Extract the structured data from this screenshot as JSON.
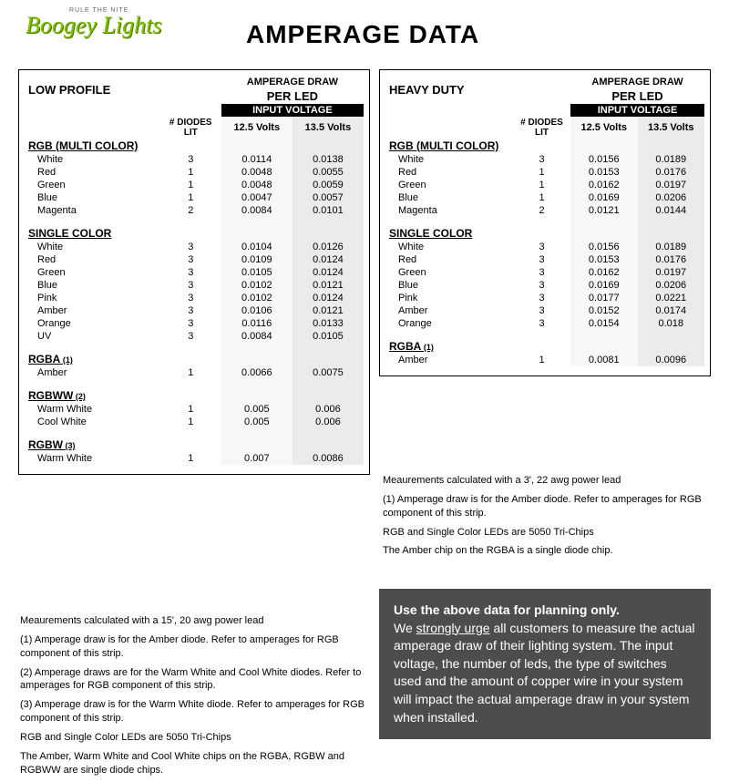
{
  "logo": {
    "tagline": "RULE THE NITE",
    "brand": "Boogey Lights"
  },
  "title": "AMPERAGE DATA",
  "colors": {
    "voltage_bar_bg": "#000000",
    "voltage_bar_text": "#ffffff",
    "col_light_bg": "#f7f7f7",
    "col_dark_bg": "#ebebeb",
    "warn_bg": "#4d4d4d",
    "warn_text": "#ffffff",
    "logo_green": "#7fbf00"
  },
  "headers": {
    "amp_draw": "AMPERAGE DRAW",
    "per_led": "PER LED",
    "input_voltage": "INPUT VOLTAGE",
    "diodes_lit_1": "# DIODES",
    "diodes_lit_2": "LIT",
    "v125": "12.5 Volts",
    "v135": "13.5 Volts"
  },
  "left": {
    "title": "LOW PROFILE",
    "sections": [
      {
        "heading": "RGB (MULTI COLOR)",
        "rows": [
          [
            "White",
            "3",
            "0.0114",
            "0.0138"
          ],
          [
            "Red",
            "1",
            "0.0048",
            "0.0055"
          ],
          [
            "Green",
            "1",
            "0.0048",
            "0.0059"
          ],
          [
            "Blue",
            "1",
            "0.0047",
            "0.0057"
          ],
          [
            "Magenta",
            "2",
            "0.0084",
            "0.0101"
          ]
        ]
      },
      {
        "heading": "SINGLE COLOR",
        "rows": [
          [
            "White",
            "3",
            "0.0104",
            "0.0126"
          ],
          [
            "Red",
            "3",
            "0.0109",
            "0.0124"
          ],
          [
            "Green",
            "3",
            "0.0105",
            "0.0124"
          ],
          [
            "Blue",
            "3",
            "0.0102",
            "0.0121"
          ],
          [
            "Pink",
            "3",
            "0.0102",
            "0.0124"
          ],
          [
            "Amber",
            "3",
            "0.0106",
            "0.0121"
          ],
          [
            "Orange",
            "3",
            "0.0116",
            "0.0133"
          ],
          [
            "UV",
            "3",
            "0.0084",
            "0.0105"
          ]
        ]
      },
      {
        "heading": "RGBA",
        "note": "(1)",
        "rows": [
          [
            "Amber",
            "1",
            "0.0066",
            "0.0075"
          ]
        ]
      },
      {
        "heading": "RGBWW",
        "note": "(2)",
        "rows": [
          [
            "Warm White",
            "1",
            "0.005",
            "0.006"
          ],
          [
            "Cool White",
            "1",
            "0.005",
            "0.006"
          ]
        ]
      },
      {
        "heading": "RGBW",
        "note": "(3)",
        "rows": [
          [
            "Warm White",
            "1",
            "0.007",
            "0.0086"
          ]
        ]
      }
    ]
  },
  "right": {
    "title": "HEAVY DUTY",
    "sections": [
      {
        "heading": "RGB (MULTI COLOR)",
        "rows": [
          [
            "White",
            "3",
            "0.0156",
            "0.0189"
          ],
          [
            "Red",
            "1",
            "0.0153",
            "0.0176"
          ],
          [
            "Green",
            "1",
            "0.0162",
            "0.0197"
          ],
          [
            "Blue",
            "1",
            "0.0169",
            "0.0206"
          ],
          [
            "Magenta",
            "2",
            "0.0121",
            "0.0144"
          ]
        ]
      },
      {
        "heading": "SINGLE COLOR",
        "rows": [
          [
            "White",
            "3",
            "0.0156",
            "0.0189"
          ],
          [
            "Red",
            "3",
            "0.0153",
            "0.0176"
          ],
          [
            "Green",
            "3",
            "0.0162",
            "0.0197"
          ],
          [
            "Blue",
            "3",
            "0.0169",
            "0.0206"
          ],
          [
            "Pink",
            "3",
            "0.0177",
            "0.0221"
          ],
          [
            "Amber",
            "3",
            "0.0152",
            "0.0174"
          ],
          [
            "Orange",
            "3",
            "0.0154",
            "0.018"
          ]
        ]
      },
      {
        "heading": "RGBA",
        "note": "(1)",
        "rows": [
          [
            "Amber",
            "1",
            "0.0081",
            "0.0096"
          ]
        ]
      }
    ]
  },
  "footnotes_left": [
    "Meaurements calculated with a 15', 20 awg power lead",
    "(1) Amperage draw is for the Amber diode.  Refer to amperages for RGB component of this strip.",
    "(2) Amperage draws are for the Warm White and Cool White diodes.  Refer to amperages for RGB component of this strip.",
    "(3) Amperage draw is for the Warm White diode.  Refer to amperages for RGB component of this strip.",
    "RGB and Single Color LEDs are 5050 Tri-Chips",
    "The Amber, Warm White and Cool White chips on the RGBA, RGBW and RGBWW are single diode chips."
  ],
  "footnotes_right": [
    "Meaurements calculated with a 3', 22 awg power lead",
    "(1) Amperage draw is for the Amber diode.  Refer to amperages for RGB component of this strip.",
    "RGB and Single Color LEDs are 5050 Tri-Chips",
    "The Amber chip on the RGBA is a single diode chip."
  ],
  "warning": {
    "bold_line": "Use the above data for planning only.",
    "pre": "We ",
    "ul": "strongly urge",
    "post": " all customers to measure the actual amperage draw of their lighting system.  The input voltage, the number of leds, the type of switches used and the amount of copper wire in your system will impact the actual amperage draw in your system when installed."
  }
}
